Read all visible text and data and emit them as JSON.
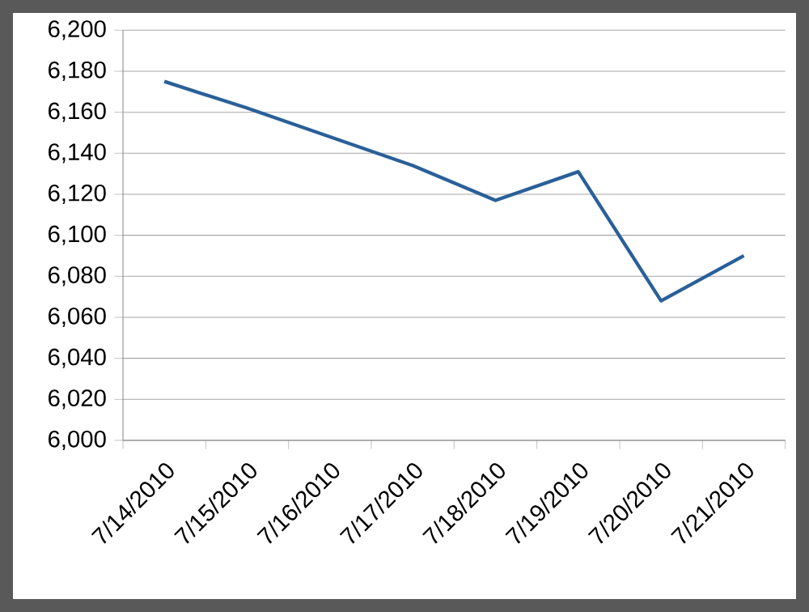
{
  "chart_data": {
    "type": "line",
    "categories": [
      "7/14/2010",
      "7/15/2010",
      "7/16/2010",
      "7/17/2010",
      "7/18/2010",
      "7/19/2010",
      "7/20/2010",
      "7/21/2010"
    ],
    "values": [
      6175,
      6162,
      6148,
      6134,
      6117,
      6131,
      6068,
      6090
    ],
    "color": "#2a6099",
    "ylim": [
      6000,
      6200
    ],
    "yticks": [
      {
        "value": 6000,
        "label": "6,000"
      },
      {
        "value": 6020,
        "label": "6,020"
      },
      {
        "value": 6040,
        "label": "6,040"
      },
      {
        "value": 6060,
        "label": "6,060"
      },
      {
        "value": 6080,
        "label": "6,080"
      },
      {
        "value": 6100,
        "label": "6,100"
      },
      {
        "value": 6120,
        "label": "6,120"
      },
      {
        "value": 6140,
        "label": "6,140"
      },
      {
        "value": 6160,
        "label": "6,160"
      },
      {
        "value": 6180,
        "label": "6,180"
      },
      {
        "value": 6200,
        "label": "6,200"
      }
    ],
    "grid": "y",
    "marker": "none",
    "line_style": "solid"
  }
}
